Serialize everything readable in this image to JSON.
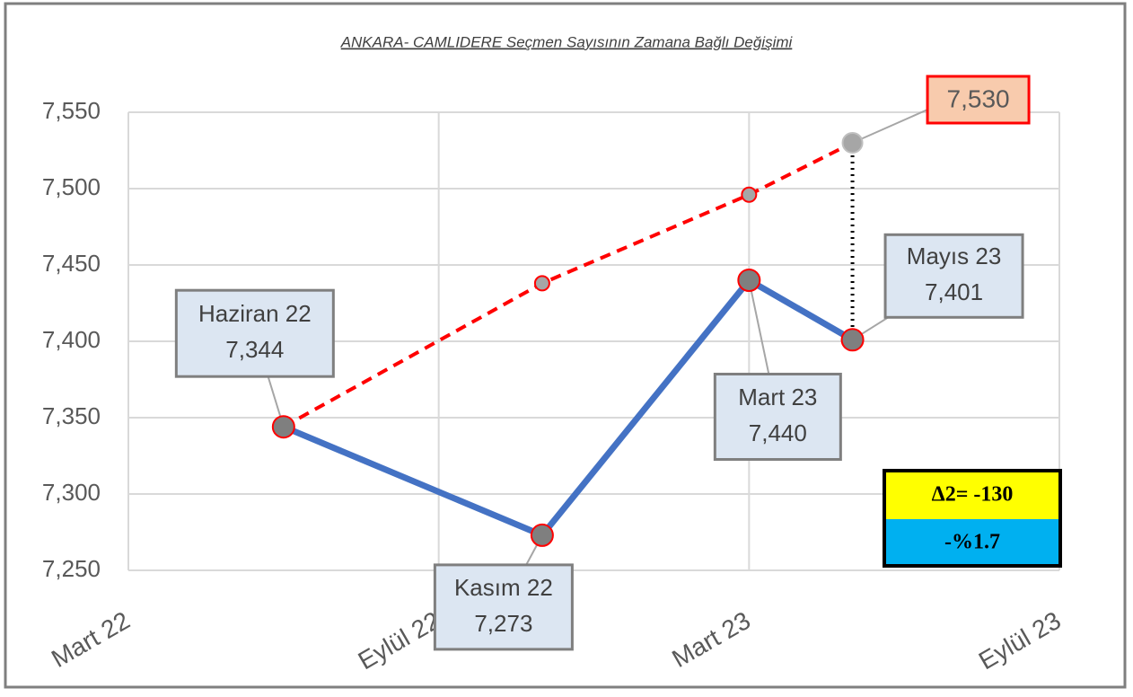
{
  "chart_data": {
    "type": "line",
    "title": "ANKARA- CAMLIDERE Seçmen Sayısının Zamana Bağlı Değişimi",
    "x": [
      "2022-06",
      "2022-11",
      "2023-03",
      "2023-05"
    ],
    "xlim": [
      "2022-03",
      "2023-09"
    ],
    "xticks": [
      {
        "value": "2022-03",
        "label": "Mart 22"
      },
      {
        "value": "2022-09",
        "label": "Eylül 22"
      },
      {
        "value": "2023-03",
        "label": "Mart 23"
      },
      {
        "value": "2023-09",
        "label": "Eylül 23"
      }
    ],
    "ylim": [
      7250,
      7550
    ],
    "yticks": [
      {
        "value": 7250,
        "label": "7,250"
      },
      {
        "value": 7300,
        "label": "7,300"
      },
      {
        "value": 7350,
        "label": "7,350"
      },
      {
        "value": 7400,
        "label": "7,400"
      },
      {
        "value": 7450,
        "label": "7,450"
      },
      {
        "value": 7500,
        "label": "7,500"
      },
      {
        "value": 7550,
        "label": "7,550"
      }
    ],
    "grid": true,
    "series": [
      {
        "color": "#4472c4",
        "values": [
          7344,
          7273,
          7440,
          7401
        ],
        "labels": [
          "Haziran 22",
          "Kasım 22",
          "Mart 23",
          "Mayıs 23"
        ],
        "value_labels": [
          "7,344",
          "7,273",
          "7,440",
          "7,401"
        ]
      },
      {
        "color": "#ff0000",
        "style": "dashed",
        "values": [
          7344,
          7438,
          7496,
          7530
        ],
        "value_labels": [
          null,
          null,
          null,
          "7,530"
        ]
      }
    ],
    "annotations": [
      "Δ2= -130",
      "-%1.7"
    ]
  }
}
